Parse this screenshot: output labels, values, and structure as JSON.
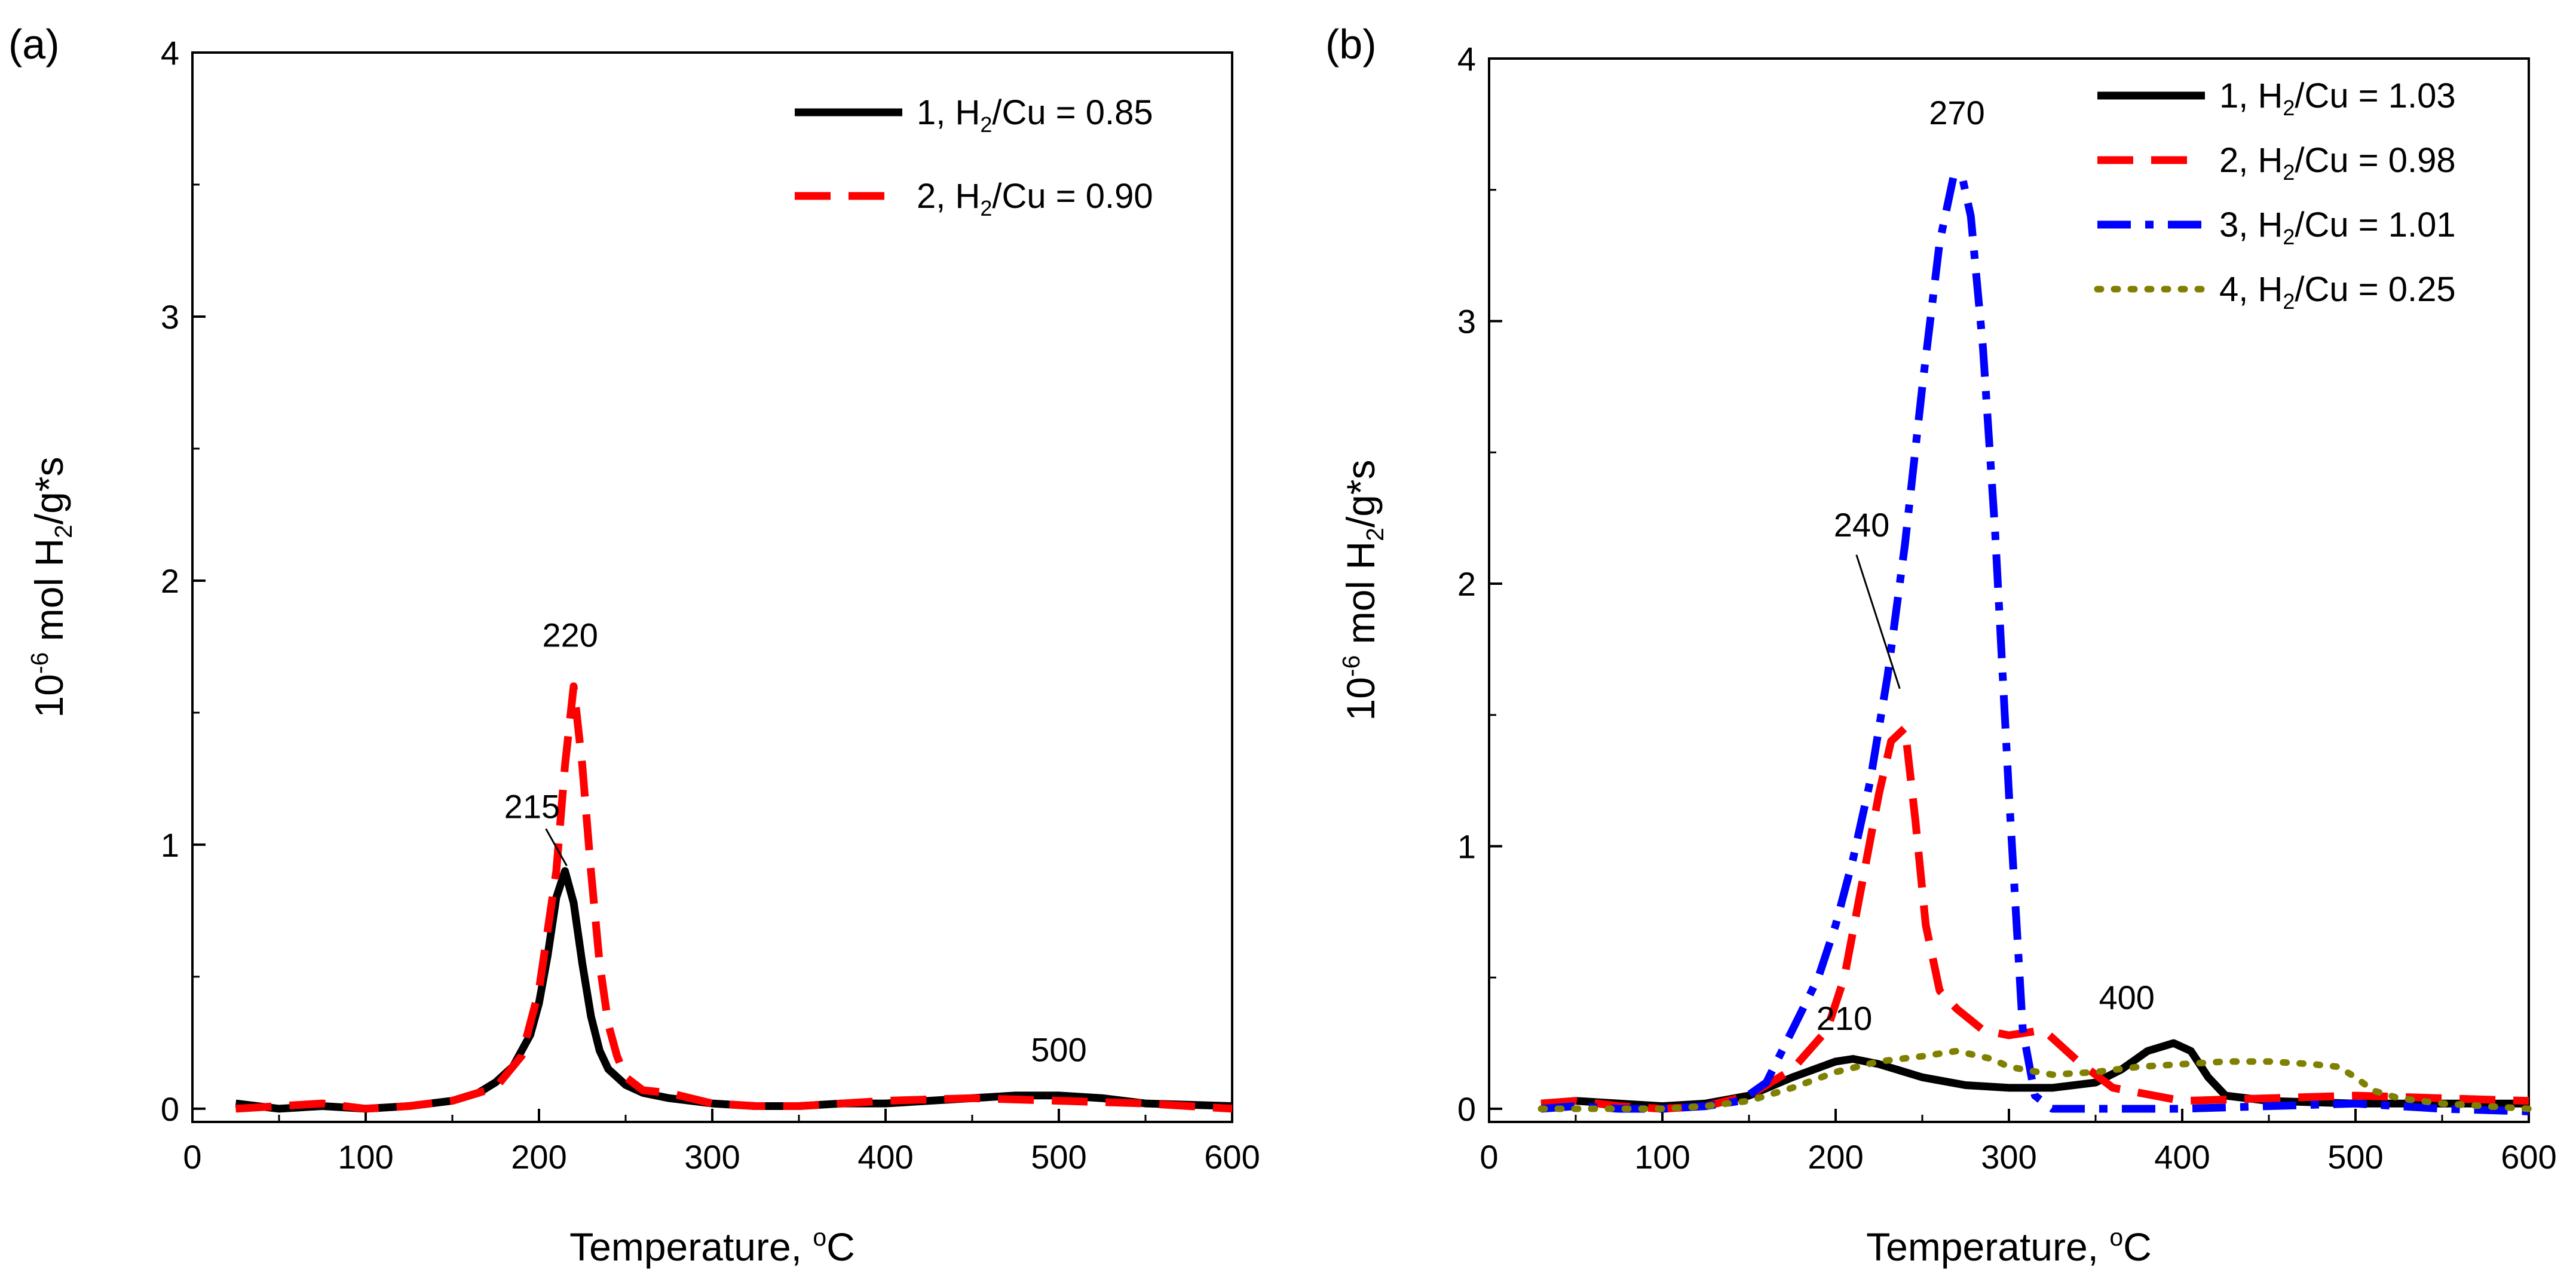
{
  "chart_data": [
    {
      "panel_label": "(a)",
      "type": "line",
      "xlabel": "Temperature, °C",
      "ylabel": "10⁻⁶ mol H₂/g*s",
      "xlim": [
        0,
        600
      ],
      "ylim": [
        -0.05,
        4
      ],
      "xticks": [
        "0",
        "100",
        "200",
        "300",
        "400",
        "500",
        "600"
      ],
      "yticks": [
        "0",
        "1",
        "2",
        "3",
        "4"
      ],
      "grid": false,
      "legend_position": "top-right",
      "series": [
        {
          "name": "1, H₂/Cu = 0.85",
          "color": "#000000",
          "dash": "solid",
          "x": [
            25,
            50,
            75,
            100,
            125,
            150,
            165,
            175,
            185,
            195,
            200,
            205,
            210,
            215,
            220,
            225,
            230,
            235,
            240,
            250,
            260,
            275,
            300,
            325,
            350,
            375,
            400,
            450,
            475,
            500,
            525,
            550,
            600
          ],
          "y": [
            0.02,
            0.0,
            0.01,
            0.0,
            0.01,
            0.03,
            0.06,
            0.1,
            0.16,
            0.28,
            0.4,
            0.58,
            0.8,
            0.9,
            0.78,
            0.55,
            0.35,
            0.22,
            0.15,
            0.09,
            0.06,
            0.04,
            0.02,
            0.01,
            0.01,
            0.02,
            0.02,
            0.04,
            0.05,
            0.05,
            0.04,
            0.02,
            0.01
          ]
        },
        {
          "name": "2, H₂/Cu = 0.90",
          "color": "#ff0000",
          "dash": "dashed",
          "x": [
            25,
            50,
            75,
            100,
            125,
            150,
            175,
            190,
            200,
            210,
            215,
            220,
            225,
            230,
            235,
            240,
            245,
            250,
            260,
            275,
            300,
            325,
            350,
            375,
            400,
            450,
            500,
            550,
            600
          ],
          "y": [
            0.0,
            0.01,
            0.02,
            0.0,
            0.01,
            0.03,
            0.08,
            0.2,
            0.45,
            0.9,
            1.3,
            1.6,
            1.3,
            0.9,
            0.55,
            0.32,
            0.2,
            0.12,
            0.07,
            0.06,
            0.02,
            0.01,
            0.01,
            0.02,
            0.03,
            0.04,
            0.03,
            0.02,
            0.0
          ]
        }
      ],
      "annotations": [
        {
          "text": "220",
          "x": 218,
          "y": 1.75
        },
        {
          "text": "215",
          "x": 196,
          "y": 1.1
        },
        {
          "text": "500",
          "x": 500,
          "y": 0.18
        }
      ]
    },
    {
      "panel_label": "(b)",
      "type": "line",
      "xlabel": "Temperature, °C",
      "ylabel": "10⁻⁶ mol H₂/g*s",
      "xlim": [
        0,
        600
      ],
      "ylim": [
        -0.05,
        4
      ],
      "xticks": [
        "0",
        "100",
        "200",
        "300",
        "400",
        "500",
        "600"
      ],
      "yticks": [
        "0",
        "1",
        "2",
        "3",
        "4"
      ],
      "grid": false,
      "legend_position": "top-right",
      "series": [
        {
          "name": "1, H₂/Cu = 1.03",
          "color": "#000000",
          "dash": "solid",
          "x": [
            30,
            50,
            75,
            100,
            125,
            150,
            175,
            200,
            210,
            225,
            250,
            275,
            300,
            325,
            350,
            365,
            380,
            395,
            405,
            415,
            425,
            450,
            500,
            550,
            600
          ],
          "y": [
            0.02,
            0.03,
            0.02,
            0.01,
            0.02,
            0.05,
            0.12,
            0.18,
            0.19,
            0.17,
            0.12,
            0.09,
            0.08,
            0.08,
            0.1,
            0.15,
            0.22,
            0.25,
            0.22,
            0.12,
            0.05,
            0.03,
            0.02,
            0.02,
            0.02
          ]
        },
        {
          "name": "2, H₂/Cu = 0.98",
          "color": "#ff0000",
          "dash": "dashed",
          "x": [
            30,
            50,
            75,
            100,
            125,
            150,
            175,
            195,
            205,
            215,
            225,
            232,
            240,
            246,
            252,
            260,
            270,
            285,
            300,
            320,
            340,
            360,
            400,
            450,
            500,
            550,
            600
          ],
          "y": [
            0.02,
            0.03,
            0.01,
            0.0,
            0.01,
            0.05,
            0.15,
            0.3,
            0.5,
            0.85,
            1.2,
            1.4,
            1.45,
            1.1,
            0.7,
            0.45,
            0.38,
            0.3,
            0.28,
            0.3,
            0.18,
            0.08,
            0.03,
            0.04,
            0.05,
            0.04,
            0.03
          ]
        },
        {
          "name": "3, H₂/Cu = 1.01",
          "color": "#0000ff",
          "dash": "dashdot",
          "x": [
            30,
            50,
            75,
            100,
            125,
            145,
            160,
            175,
            190,
            200,
            210,
            220,
            230,
            240,
            250,
            260,
            268,
            273,
            278,
            285,
            292,
            300,
            308,
            315,
            325,
            350,
            400,
            450,
            500,
            550,
            600
          ],
          "y": [
            0.0,
            0.01,
            0.0,
            0.0,
            0.01,
            0.03,
            0.1,
            0.3,
            0.5,
            0.7,
            0.95,
            1.25,
            1.65,
            2.15,
            2.75,
            3.3,
            3.55,
            3.55,
            3.4,
            2.9,
            2.2,
            1.2,
            0.3,
            0.05,
            0.0,
            0.0,
            0.0,
            0.01,
            0.02,
            0.0,
            -0.01
          ]
        },
        {
          "name": "4, H₂/Cu = 0.25",
          "color": "#808000",
          "dash": "dotted",
          "x": [
            30,
            50,
            100,
            125,
            150,
            175,
            200,
            225,
            250,
            270,
            290,
            300,
            325,
            350,
            375,
            400,
            425,
            450,
            475,
            490,
            500,
            510,
            525,
            550,
            575,
            600
          ],
          "y": [
            0.0,
            0.0,
            0.0,
            0.01,
            0.03,
            0.08,
            0.14,
            0.18,
            0.2,
            0.22,
            0.19,
            0.16,
            0.13,
            0.14,
            0.16,
            0.17,
            0.18,
            0.18,
            0.17,
            0.16,
            0.12,
            0.07,
            0.04,
            0.02,
            0.01,
            0.0
          ]
        }
      ],
      "annotations": [
        {
          "text": "270",
          "x": 270,
          "y": 3.75
        },
        {
          "text": "240",
          "x": 215,
          "y": 2.18
        },
        {
          "text": "210",
          "x": 205,
          "y": 0.3
        },
        {
          "text": "400",
          "x": 368,
          "y": 0.38
        }
      ]
    }
  ]
}
